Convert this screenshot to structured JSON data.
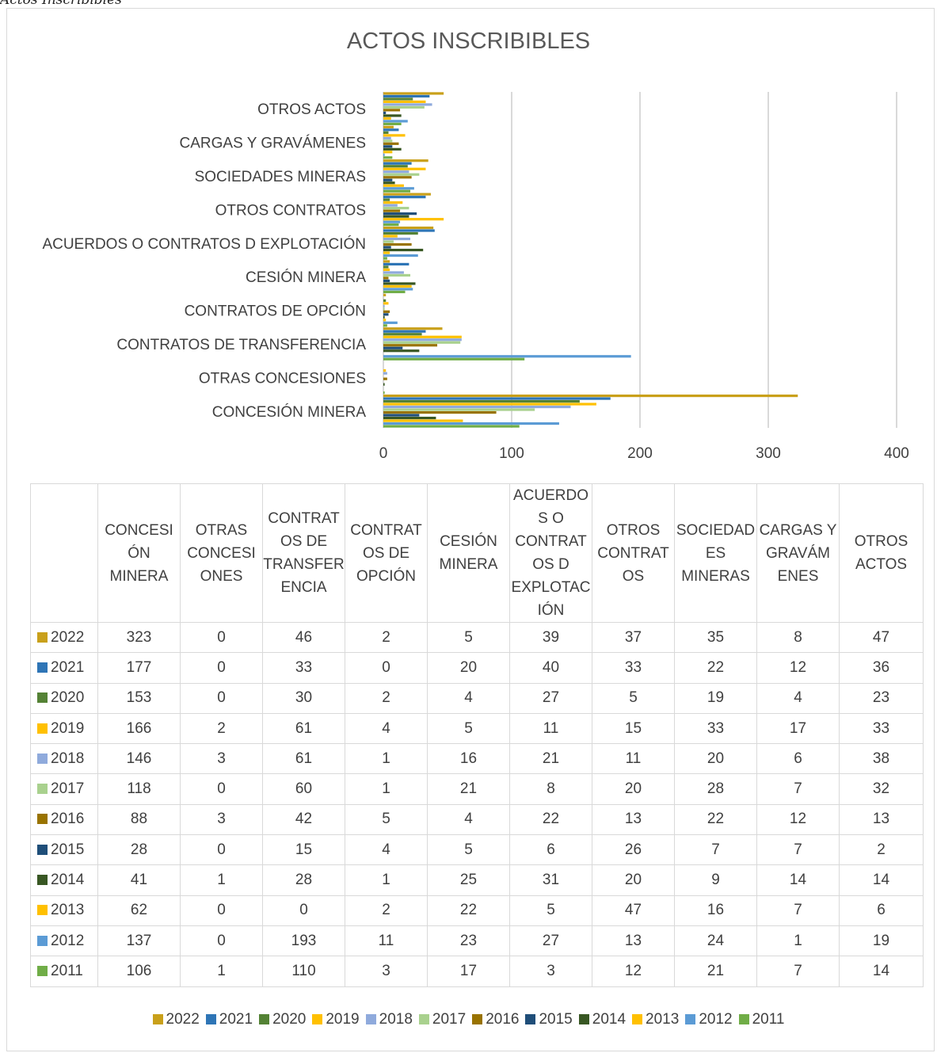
{
  "caption": "Actos Inscribibles",
  "chart_data": {
    "type": "bar",
    "orientation": "horizontal",
    "title": "ACTOS INSCRIBIBLES",
    "xlim": [
      0,
      400
    ],
    "x_ticks": [
      "0",
      "100",
      "200",
      "300",
      "400"
    ],
    "grid": true,
    "legend_position": "bottom",
    "categories": [
      "CONCESIÓN MINERA",
      "OTRAS CONCESIONES",
      "CONTRATOS DE TRANSFERENCIA",
      "CONTRATOS DE OPCIÓN",
      "CESIÓN MINERA",
      "ACUERDOS O CONTRATOS D EXPLOTACIÓN",
      "OTROS CONTRATOS",
      "SOCIEDADES MINERAS",
      "CARGAS Y GRAVÁMENES",
      "OTROS ACTOS"
    ],
    "table_headers": [
      "CONCESIÓN MINERA",
      "OTRAS CONCESIONES",
      "CONTRATOS DE TRANSFERENCIA",
      "CONTRATOS DE OPCIÓN",
      "CESIÓN MINERA",
      "ACUERDOS O CONTRATOS D EXPLOTACIÓN",
      "OTROS CONTRATOS",
      "SOCIEDADES MINERAS",
      "CARGAS Y GRAVÁMENES",
      "OTROS ACTOS"
    ],
    "series": [
      {
        "name": "2022",
        "color": "#C9A01A",
        "values": [
          323,
          0,
          46,
          2,
          5,
          39,
          37,
          35,
          8,
          47
        ]
      },
      {
        "name": "2021",
        "color": "#2E75B6",
        "values": [
          177,
          0,
          33,
          0,
          20,
          40,
          33,
          22,
          12,
          36
        ]
      },
      {
        "name": "2020",
        "color": "#548235",
        "values": [
          153,
          0,
          30,
          2,
          4,
          27,
          5,
          19,
          4,
          23
        ]
      },
      {
        "name": "2019",
        "color": "#FFC000",
        "values": [
          166,
          2,
          61,
          4,
          5,
          11,
          15,
          33,
          17,
          33
        ]
      },
      {
        "name": "2018",
        "color": "#8FAADC",
        "values": [
          146,
          3,
          61,
          1,
          16,
          21,
          11,
          20,
          6,
          38
        ]
      },
      {
        "name": "2017",
        "color": "#A9D18E",
        "values": [
          118,
          0,
          60,
          1,
          21,
          8,
          20,
          28,
          7,
          32
        ]
      },
      {
        "name": "2016",
        "color": "#997300",
        "values": [
          88,
          3,
          42,
          5,
          4,
          22,
          13,
          22,
          12,
          13
        ]
      },
      {
        "name": "2015",
        "color": "#1F4E79",
        "values": [
          28,
          0,
          15,
          4,
          5,
          6,
          26,
          7,
          7,
          2
        ]
      },
      {
        "name": "2014",
        "color": "#385723",
        "values": [
          41,
          1,
          28,
          1,
          25,
          31,
          20,
          9,
          14,
          14
        ]
      },
      {
        "name": "2013",
        "color": "#FFC000",
        "values": [
          62,
          0,
          0,
          2,
          22,
          5,
          47,
          16,
          7,
          6
        ]
      },
      {
        "name": "2012",
        "color": "#5B9BD5",
        "values": [
          137,
          0,
          193,
          11,
          23,
          27,
          13,
          24,
          1,
          19
        ]
      },
      {
        "name": "2011",
        "color": "#70AD47",
        "values": [
          106,
          1,
          110,
          3,
          17,
          3,
          12,
          21,
          7,
          14
        ]
      }
    ]
  }
}
